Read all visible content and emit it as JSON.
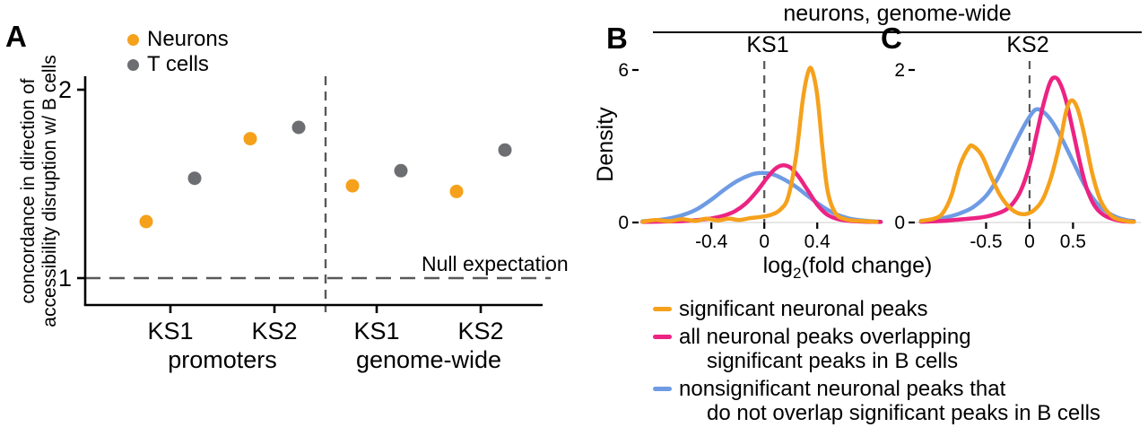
{
  "colors": {
    "orange": "#F5A11C",
    "pink": "#EC2383",
    "blue": "#6E9BE4",
    "gray_point": "#6D6E71",
    "dash": "#58595B",
    "axis": "#000000",
    "baseline": "#dedede"
  },
  "panel_a": {
    "label": "A",
    "legend": [
      {
        "label": "Neurons",
        "color_key": "orange"
      },
      {
        "label": "T cells",
        "color_key": "gray_point"
      }
    ],
    "ylabel_line1": "concordance in direction of",
    "ylabel_line2": "accessibility disruption w/ B cells",
    "null_label": "Null expectation"
  },
  "panel_b": {
    "label": "B",
    "title": "KS1"
  },
  "panel_c": {
    "label": "C",
    "title": "KS2"
  },
  "right_header": "neurons, genome-wide",
  "density_ylabel": "Density",
  "xlabel": {
    "prefix": "log",
    "sub": "2",
    "suffix": "(fold change)"
  },
  "legend_bc": [
    {
      "color_key": "orange",
      "lines": [
        "significant neuronal peaks"
      ]
    },
    {
      "color_key": "pink",
      "lines": [
        "all neuronal peaks overlapping",
        "significant peaks in B cells"
      ]
    },
    {
      "color_key": "blue",
      "lines": [
        "nonsignificant neuronal peaks that",
        "do not overlap significant peaks in B cells"
      ]
    }
  ],
  "chart_data": [
    {
      "id": "concordance_scatter",
      "type": "scatter",
      "ylabel": "concordance in direction of accessibility disruption w/ B cells",
      "ylim": [
        0.86,
        2.07
      ],
      "yticks": [
        1,
        2
      ],
      "x_ticks": [
        "KS1",
        "KS2",
        "KS1",
        "KS2"
      ],
      "group_labels": [
        "promoters",
        "genome-wide"
      ],
      "null_expectation": 1,
      "series": [
        {
          "name": "Neurons",
          "color_key": "orange",
          "values": [
            1.3,
            1.74,
            1.49,
            1.46
          ]
        },
        {
          "name": "T cells",
          "color_key": "gray_point",
          "values": [
            1.53,
            1.8,
            1.57,
            1.68
          ]
        }
      ]
    },
    {
      "id": "ks1_density",
      "type": "line",
      "title": "KS1",
      "xlabel": "log2(fold change)",
      "ylabel": "Density",
      "xlim": [
        -0.95,
        0.9
      ],
      "ylim": [
        0,
        6
      ],
      "xticks": [
        -0.4,
        0,
        0.4
      ],
      "yticks": [
        0,
        6
      ],
      "vline": 0,
      "series": [
        {
          "name": "significant neuronal peaks",
          "color_key": "orange",
          "points": [
            [
              -0.92,
              0.03
            ],
            [
              -0.82,
              0.1
            ],
            [
              -0.72,
              0.05
            ],
            [
              -0.62,
              0.13
            ],
            [
              -0.52,
              0.06
            ],
            [
              -0.44,
              0.15
            ],
            [
              -0.35,
              0.08
            ],
            [
              -0.27,
              0.15
            ],
            [
              -0.19,
              0.1
            ],
            [
              -0.11,
              0.17
            ],
            [
              -0.03,
              0.22
            ],
            [
              0.05,
              0.3
            ],
            [
              0.12,
              0.5
            ],
            [
              0.18,
              1.0
            ],
            [
              0.24,
              2.6
            ],
            [
              0.29,
              4.8
            ],
            [
              0.33,
              5.9
            ],
            [
              0.36,
              6.0
            ],
            [
              0.4,
              5.0
            ],
            [
              0.44,
              2.9
            ],
            [
              0.48,
              1.2
            ],
            [
              0.54,
              0.35
            ],
            [
              0.62,
              0.12
            ],
            [
              0.72,
              0.06
            ],
            [
              0.85,
              0.03
            ]
          ]
        },
        {
          "name": "all neuronal peaks overlapping significant peaks in B cells",
          "color_key": "pink",
          "points": [
            [
              -0.92,
              0.02
            ],
            [
              -0.75,
              0.04
            ],
            [
              -0.6,
              0.06
            ],
            [
              -0.5,
              0.1
            ],
            [
              -0.4,
              0.16
            ],
            [
              -0.3,
              0.28
            ],
            [
              -0.22,
              0.45
            ],
            [
              -0.14,
              0.75
            ],
            [
              -0.06,
              1.2
            ],
            [
              0.02,
              1.75
            ],
            [
              0.08,
              2.1
            ],
            [
              0.14,
              2.25
            ],
            [
              0.2,
              2.15
            ],
            [
              0.26,
              1.8
            ],
            [
              0.33,
              1.25
            ],
            [
              0.4,
              0.7
            ],
            [
              0.47,
              0.33
            ],
            [
              0.55,
              0.14
            ],
            [
              0.65,
              0.06
            ],
            [
              0.78,
              0.03
            ],
            [
              0.88,
              0.02
            ]
          ]
        },
        {
          "name": "nonsignificant neuronal peaks that do not overlap significant peaks in B cells",
          "color_key": "blue",
          "points": [
            [
              -0.92,
              0.05
            ],
            [
              -0.8,
              0.1
            ],
            [
              -0.7,
              0.18
            ],
            [
              -0.6,
              0.32
            ],
            [
              -0.5,
              0.55
            ],
            [
              -0.4,
              0.9
            ],
            [
              -0.3,
              1.3
            ],
            [
              -0.2,
              1.65
            ],
            [
              -0.1,
              1.88
            ],
            [
              -0.02,
              1.95
            ],
            [
              0.06,
              1.9
            ],
            [
              0.14,
              1.72
            ],
            [
              0.24,
              1.4
            ],
            [
              0.34,
              1.0
            ],
            [
              0.44,
              0.62
            ],
            [
              0.54,
              0.33
            ],
            [
              0.64,
              0.16
            ],
            [
              0.76,
              0.07
            ],
            [
              0.88,
              0.03
            ]
          ]
        }
      ]
    },
    {
      "id": "ks2_density",
      "type": "line",
      "title": "KS2",
      "xlabel": "log2(fold change)",
      "ylabel": "Density",
      "xlim": [
        -1.32,
        1.28
      ],
      "ylim": [
        0,
        2
      ],
      "xticks": [
        -0.5,
        0,
        0.5
      ],
      "yticks": [
        0,
        2
      ],
      "vline": 0,
      "series": [
        {
          "name": "significant neuronal peaks",
          "color_key": "orange",
          "points": [
            [
              -1.25,
              0.02
            ],
            [
              -1.1,
              0.05
            ],
            [
              -1.0,
              0.12
            ],
            [
              -0.9,
              0.35
            ],
            [
              -0.8,
              0.75
            ],
            [
              -0.7,
              0.98
            ],
            [
              -0.65,
              1.0
            ],
            [
              -0.55,
              0.88
            ],
            [
              -0.45,
              0.62
            ],
            [
              -0.35,
              0.38
            ],
            [
              -0.25,
              0.22
            ],
            [
              -0.15,
              0.13
            ],
            [
              -0.05,
              0.11
            ],
            [
              0.05,
              0.16
            ],
            [
              0.15,
              0.3
            ],
            [
              0.25,
              0.6
            ],
            [
              0.35,
              1.05
            ],
            [
              0.42,
              1.45
            ],
            [
              0.48,
              1.6
            ],
            [
              0.55,
              1.5
            ],
            [
              0.63,
              1.15
            ],
            [
              0.72,
              0.65
            ],
            [
              0.82,
              0.28
            ],
            [
              0.95,
              0.08
            ],
            [
              1.1,
              0.02
            ],
            [
              1.2,
              0.01
            ]
          ]
        },
        {
          "name": "all neuronal peaks overlapping significant peaks in B cells",
          "color_key": "pink",
          "points": [
            [
              -1.25,
              0.01
            ],
            [
              -1.0,
              0.02
            ],
            [
              -0.8,
              0.04
            ],
            [
              -0.6,
              0.06
            ],
            [
              -0.45,
              0.09
            ],
            [
              -0.3,
              0.15
            ],
            [
              -0.2,
              0.24
            ],
            [
              -0.1,
              0.42
            ],
            [
              0.0,
              0.75
            ],
            [
              0.08,
              1.15
            ],
            [
              0.16,
              1.55
            ],
            [
              0.23,
              1.82
            ],
            [
              0.28,
              1.9
            ],
            [
              0.34,
              1.85
            ],
            [
              0.42,
              1.6
            ],
            [
              0.5,
              1.2
            ],
            [
              0.58,
              0.78
            ],
            [
              0.66,
              0.44
            ],
            [
              0.76,
              0.2
            ],
            [
              0.88,
              0.08
            ],
            [
              1.05,
              0.02
            ],
            [
              1.2,
              0.01
            ]
          ]
        },
        {
          "name": "nonsignificant neuronal peaks that do not overlap significant peaks in B cells",
          "color_key": "blue",
          "points": [
            [
              -1.25,
              0.02
            ],
            [
              -1.1,
              0.04
            ],
            [
              -0.95,
              0.07
            ],
            [
              -0.8,
              0.12
            ],
            [
              -0.65,
              0.2
            ],
            [
              -0.5,
              0.35
            ],
            [
              -0.38,
              0.55
            ],
            [
              -0.26,
              0.82
            ],
            [
              -0.14,
              1.1
            ],
            [
              -0.02,
              1.35
            ],
            [
              0.07,
              1.48
            ],
            [
              0.16,
              1.45
            ],
            [
              0.26,
              1.32
            ],
            [
              0.38,
              1.08
            ],
            [
              0.5,
              0.8
            ],
            [
              0.62,
              0.52
            ],
            [
              0.74,
              0.3
            ],
            [
              0.86,
              0.16
            ],
            [
              1.0,
              0.07
            ],
            [
              1.12,
              0.03
            ],
            [
              1.2,
              0.02
            ]
          ]
        }
      ]
    }
  ]
}
